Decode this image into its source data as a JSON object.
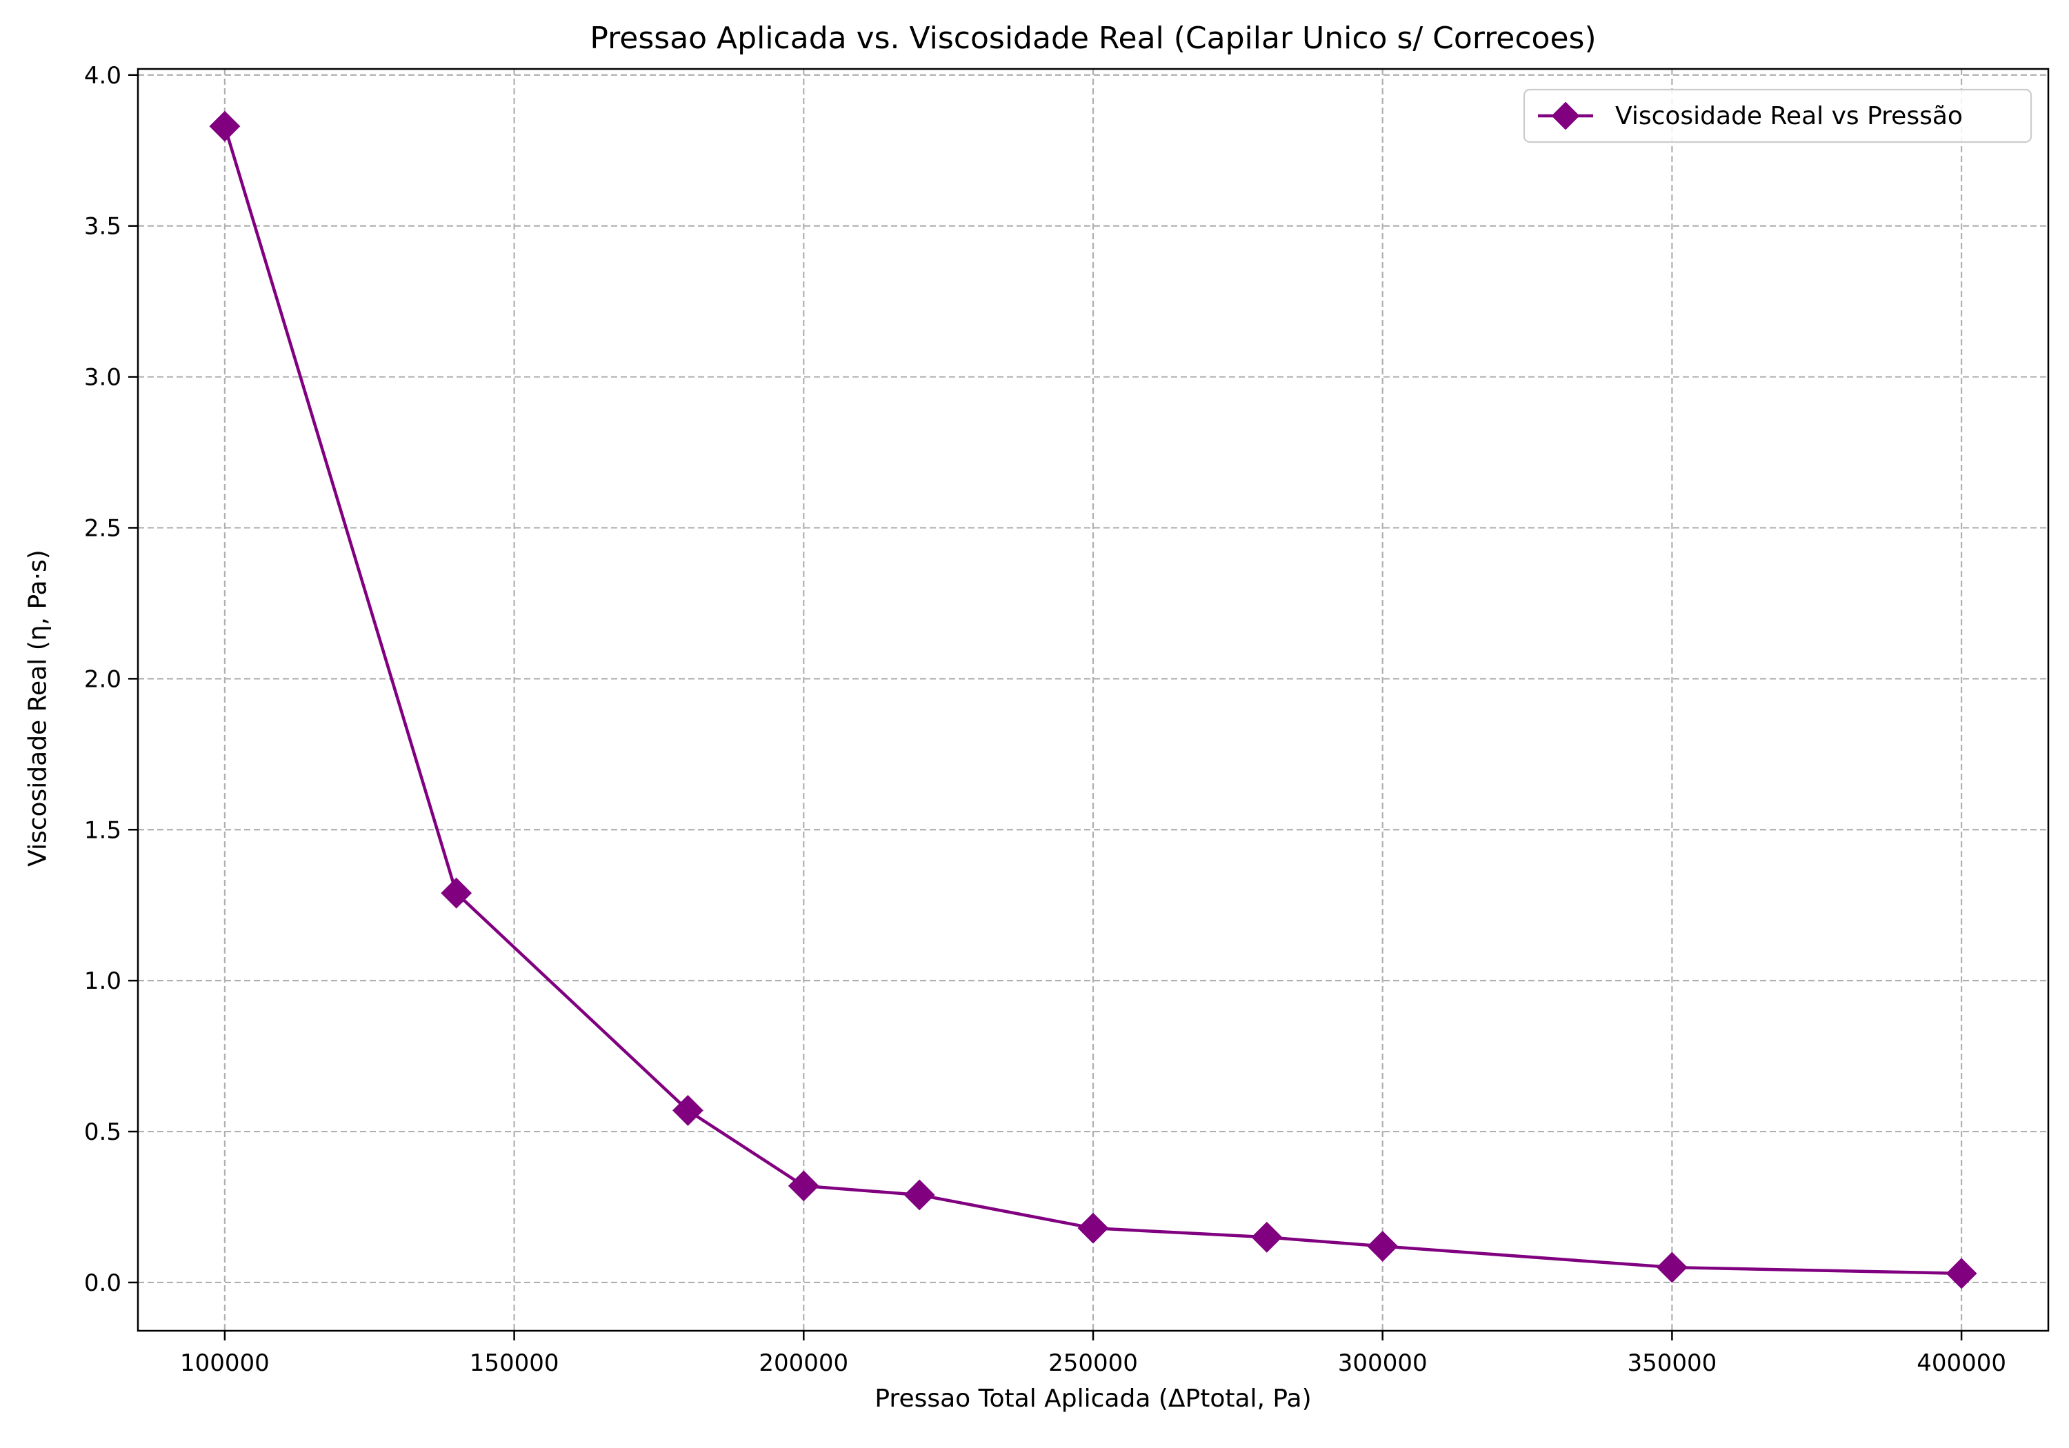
{
  "chart_data": {
    "type": "line",
    "title": "Pressao Aplicada vs. Viscosidade Real (Capilar Unico s/ Correcoes)",
    "xlabel": "Pressao Total Aplicada (ΔPtotal, Pa)",
    "ylabel": "Viscosidade Real (η, Pa·s)",
    "xlim": [
      85000,
      415000
    ],
    "ylim": [
      -0.16,
      4.02
    ],
    "x_ticks": [
      100000,
      150000,
      200000,
      250000,
      300000,
      350000,
      400000
    ],
    "y_ticks": [
      0.0,
      0.5,
      1.0,
      1.5,
      2.0,
      2.5,
      3.0,
      3.5,
      4.0
    ],
    "x_tick_labels": [
      "100000",
      "150000",
      "200000",
      "250000",
      "300000",
      "350000",
      "400000"
    ],
    "y_tick_labels": [
      "0.0",
      "0.5",
      "1.0",
      "1.5",
      "2.0",
      "2.5",
      "3.0",
      "3.5",
      "4.0"
    ],
    "grid": true,
    "legend_position": "top-right",
    "series": [
      {
        "name": "Viscosidade Real vs Pressão",
        "color": "#800080",
        "marker": "diamond",
        "x": [
          100000,
          140000,
          180000,
          200000,
          220000,
          250000,
          280000,
          300000,
          350000,
          400000
        ],
        "y": [
          3.83,
          1.29,
          0.57,
          0.32,
          0.29,
          0.18,
          0.15,
          0.12,
          0.05,
          0.03
        ]
      }
    ]
  }
}
